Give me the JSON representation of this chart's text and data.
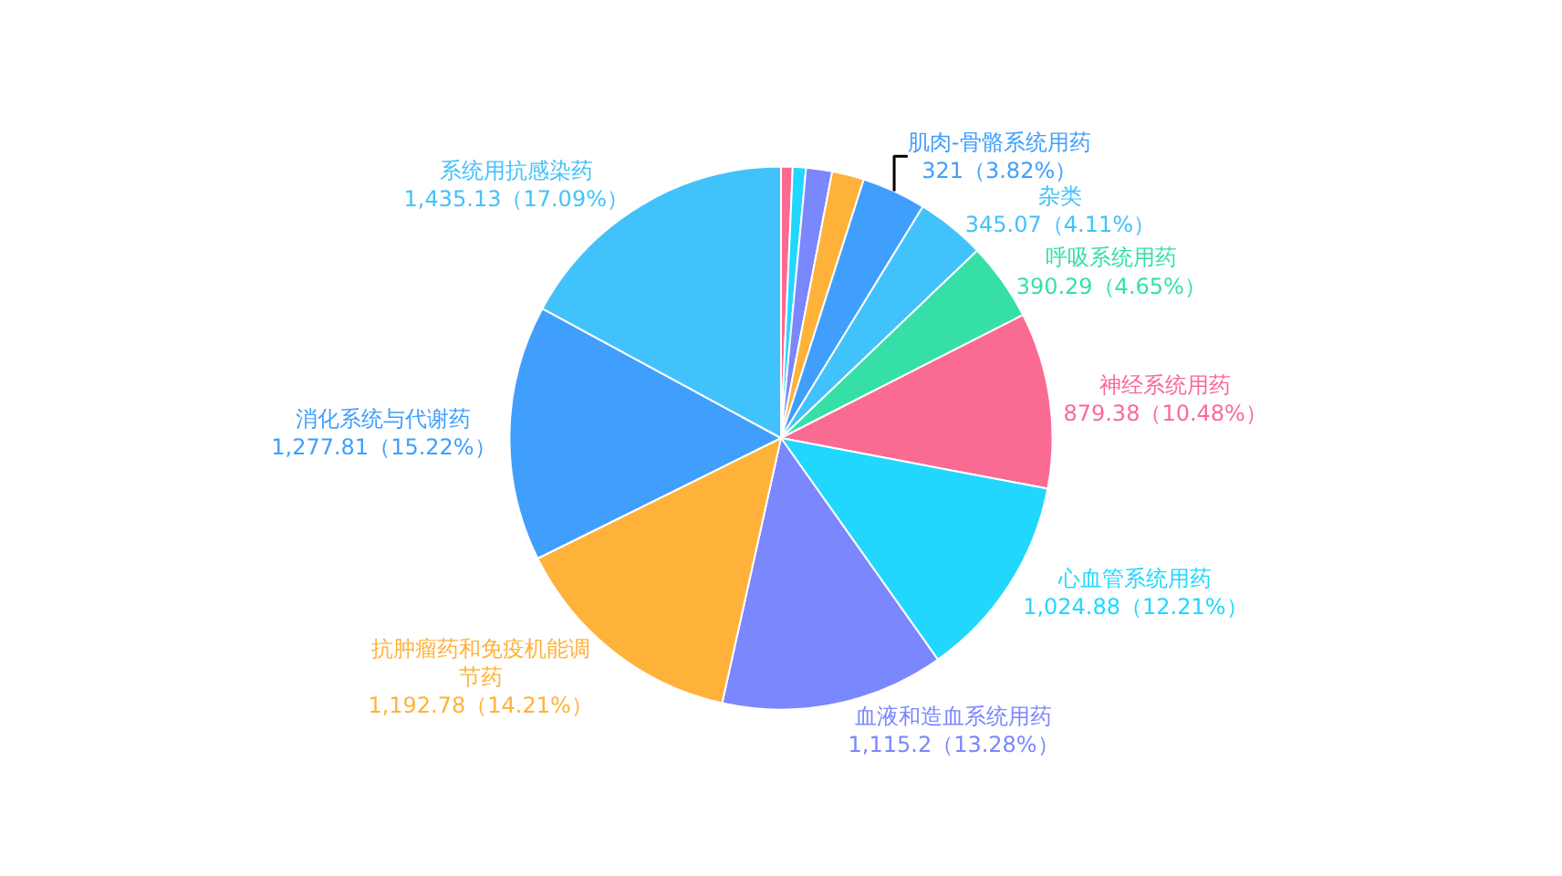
{
  "chart_data": {
    "type": "pie",
    "categories": [
      null,
      null,
      null,
      null,
      "肌肉-骨骼系统用药",
      "杂类",
      "呼吸系统用药",
      "神经系统用药",
      "心血管系统用药",
      "血液和造血系统用药",
      "抗肿瘤药和免疫机能调节药",
      "消化系统与代谢药",
      "系统用抗感染药"
    ],
    "values": [
      58,
      66,
      130,
      160,
      321,
      345.07,
      390.29,
      879.38,
      1024.88,
      1115.2,
      1192.78,
      1277.81,
      1435.13
    ],
    "value_labels": [
      null,
      null,
      null,
      null,
      "321（3.82%）",
      "345.07（4.11%）",
      "390.29（4.65%）",
      "879.38（10.48%）",
      "1,024.88（12.21%）",
      "1,115.2（13.28%）",
      "1,192.78（14.21%）",
      "1,277.81（15.22%）",
      "1,435.13（17.09%）"
    ],
    "colors": [
      "#f96b93",
      "#22d7fe",
      "#7b87fd",
      "#ffb23a",
      "#409ffd",
      "#42c2fb",
      "#36dfa7",
      "#f96b93",
      "#22d7fe",
      "#7b87fd",
      "#ffb23a",
      "#409ffd",
      "#42c2fb"
    ],
    "legend": false
  }
}
